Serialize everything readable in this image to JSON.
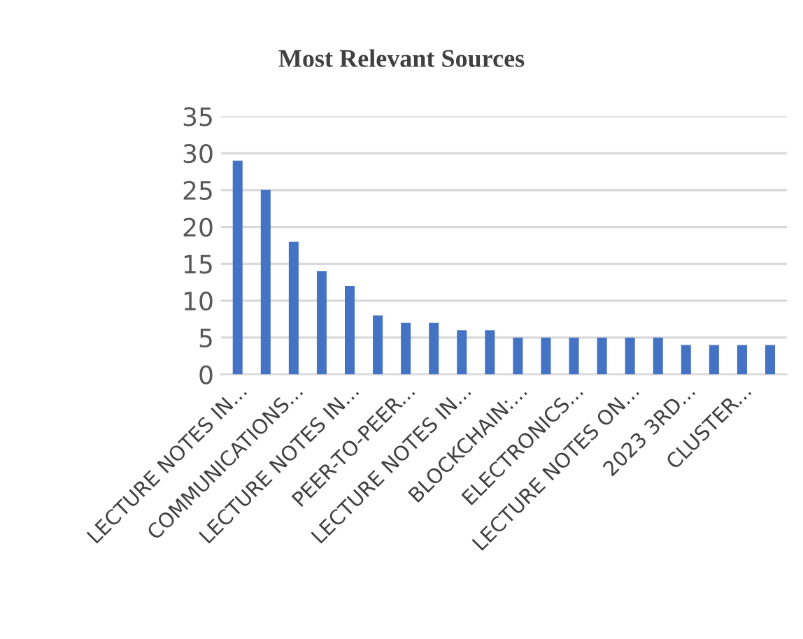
{
  "chart_data": {
    "type": "bar",
    "title": "Most Relevant Sources",
    "categories": [
      "LECTURE NOTES IN...",
      null,
      "COMMUNICATIONS...",
      null,
      "LECTURE NOTES IN...",
      null,
      "PEER-TO-PEER...",
      null,
      "LECTURE NOTES IN...",
      null,
      "BLOCKCHAIN:...",
      null,
      "ELECTRONICS...",
      null,
      "LECTURE NOTES ON...",
      null,
      "2023 3RD...",
      null,
      "CLUSTER...",
      null
    ],
    "values": [
      29,
      25,
      18,
      14,
      12,
      8,
      7,
      7,
      6,
      6,
      5,
      5,
      5,
      5,
      5,
      5,
      4,
      4,
      4,
      4
    ],
    "color": "#4472c4",
    "ylim": [
      0,
      35
    ],
    "yticks": [
      0,
      5,
      10,
      15,
      20,
      25,
      30,
      35
    ],
    "grid": "y"
  }
}
